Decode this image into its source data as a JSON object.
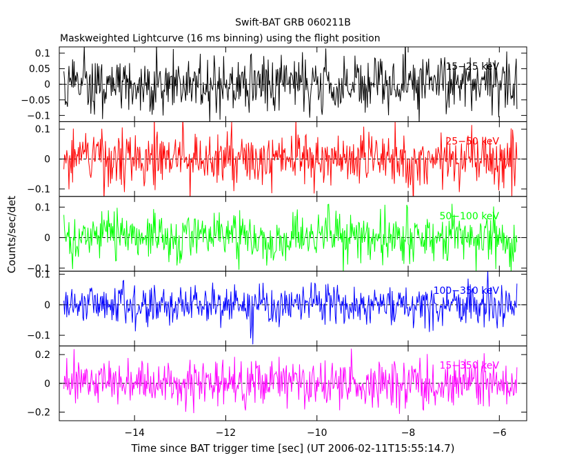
{
  "chart_data": {
    "type": "line",
    "title": "Swift-BAT GRB 060211B",
    "subtitle": "Maskweighted Lightcurve (16 ms binning) using the flight position",
    "xlabel": "Time since BAT trigger time [sec] (UT 2006-02-11T15:55:14.7)",
    "ylabel": "Counts/sec/det",
    "xlim": [
      -15.65,
      -5.4
    ],
    "xticks": [
      -14,
      -12,
      -10,
      -8,
      -6
    ],
    "xtick_labels": [
      "−14",
      "−12",
      "−10",
      "−8",
      "−6"
    ],
    "data_x_range": [
      -15.55,
      -5.6
    ],
    "bin_seconds": 0.016,
    "panels": [
      {
        "band": "15−25 keV",
        "color": "#000000",
        "ylim": [
          -0.12,
          0.12
        ],
        "yticks": [
          0.1,
          0.05,
          0,
          -0.05,
          -0.1
        ],
        "ytick_labels": [
          "0.1",
          "0.05",
          "0",
          "−0.05",
          "−0.1"
        ],
        "noise_std": 0.045,
        "dips": []
      },
      {
        "band": "25−50 keV",
        "color": "#ff0000",
        "ylim": [
          -0.125,
          0.125
        ],
        "yticks": [
          0.1,
          0,
          -0.1
        ],
        "ytick_labels": [
          "0.1",
          "0",
          "−0.1"
        ],
        "noise_std": 0.045,
        "dips": []
      },
      {
        "band": "50−100 keV",
        "color": "#00ff00",
        "ylim": [
          -0.11,
          0.135
        ],
        "yticks": [
          0.1,
          0,
          -0.1
        ],
        "ytick_labels": [
          "0.1",
          "0",
          "−0.1"
        ],
        "noise_std": 0.042,
        "dips": []
      },
      {
        "band": "100−350 keV",
        "color": "#0000ff",
        "ylim": [
          -0.135,
          0.11
        ],
        "yticks": [
          0.1,
          0,
          -0.1
        ],
        "ytick_labels": [
          "0.1",
          "0",
          "−0.1"
        ],
        "noise_std": 0.035,
        "dips": [
          {
            "t": -11.4,
            "y": -0.13
          },
          {
            "t": -11.45,
            "y": -0.11
          }
        ]
      },
      {
        "band": "15−350 keV",
        "color": "#ff00ff",
        "ylim": [
          -0.26,
          0.26
        ],
        "yticks": [
          0.2,
          0,
          -0.2
        ],
        "ytick_labels": [
          "0.2",
          "0",
          "−0.2"
        ],
        "noise_std": 0.085,
        "dips": []
      }
    ]
  }
}
